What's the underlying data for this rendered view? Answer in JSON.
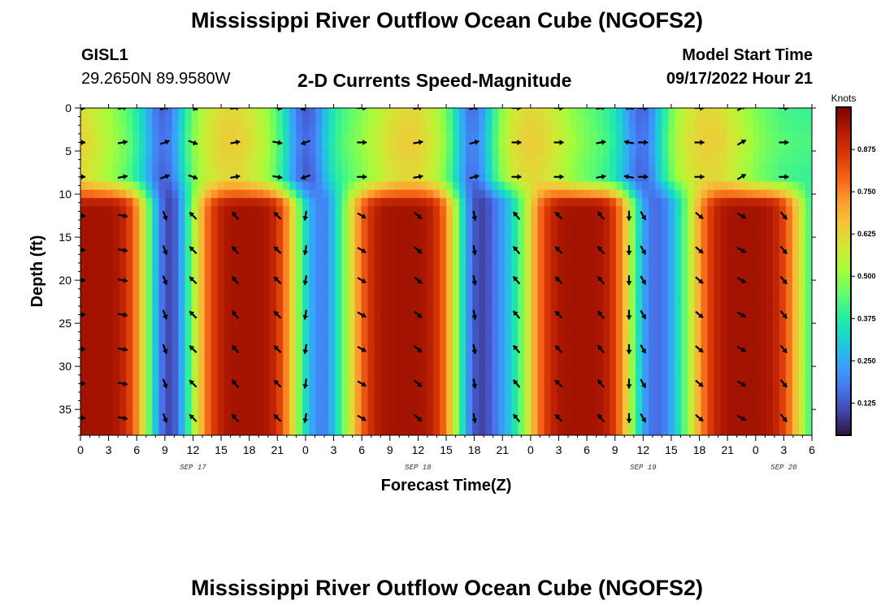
{
  "page": {
    "title_top": "Mississippi River Outflow Ocean Cube (NGOFS2)",
    "title_bottom": "Mississippi River Outflow Ocean Cube (NGOFS2)",
    "station_id": "GISL1",
    "station_coords": "29.2650N  89.9580W",
    "plot_subtitle": "2-D Currents Speed-Magnitude",
    "model_label": "Model Start Time",
    "model_time": "09/17/2022 Hour 21"
  },
  "chart_data": {
    "type": "heatmap",
    "xlabel": "Forecast Time(Z)",
    "ylabel": "Depth (ft)",
    "x_range_hours": [
      0,
      78
    ],
    "y_range_ft": [
      0,
      38
    ],
    "x_ticks": [
      {
        "hour": 0,
        "label": "0"
      },
      {
        "hour": 3,
        "label": "3"
      },
      {
        "hour": 6,
        "label": "6"
      },
      {
        "hour": 9,
        "label": "9"
      },
      {
        "hour": 12,
        "label": "12"
      },
      {
        "hour": 15,
        "label": "15"
      },
      {
        "hour": 18,
        "label": "18"
      },
      {
        "hour": 21,
        "label": "21"
      },
      {
        "hour": 24,
        "label": "0"
      },
      {
        "hour": 27,
        "label": "3"
      },
      {
        "hour": 30,
        "label": "6"
      },
      {
        "hour": 33,
        "label": "9"
      },
      {
        "hour": 36,
        "label": "12"
      },
      {
        "hour": 39,
        "label": "15"
      },
      {
        "hour": 42,
        "label": "18"
      },
      {
        "hour": 45,
        "label": "21"
      },
      {
        "hour": 48,
        "label": "0"
      },
      {
        "hour": 51,
        "label": "3"
      },
      {
        "hour": 54,
        "label": "6"
      },
      {
        "hour": 57,
        "label": "9"
      },
      {
        "hour": 60,
        "label": "12"
      },
      {
        "hour": 63,
        "label": "15"
      },
      {
        "hour": 66,
        "label": "18"
      },
      {
        "hour": 69,
        "label": "21"
      },
      {
        "hour": 72,
        "label": "0"
      },
      {
        "hour": 75,
        "label": "3"
      },
      {
        "hour": 78,
        "label": "6"
      }
    ],
    "date_labels": [
      {
        "hour": 12,
        "label": "SEP 17"
      },
      {
        "hour": 36,
        "label": "SEP 18"
      },
      {
        "hour": 60,
        "label": "SEP 19"
      },
      {
        "hour": 75,
        "label": "SEP 20"
      }
    ],
    "y_ticks": [
      0,
      5,
      10,
      15,
      20,
      25,
      30,
      35
    ],
    "colorbar": {
      "title": "Knots",
      "range": [
        0.03,
        1.0
      ],
      "ticks": [
        0.125,
        0.25,
        0.375,
        0.5,
        0.625,
        0.75,
        0.875
      ],
      "tick_labels": [
        "0.125",
        "0.250",
        "0.375",
        "0.500",
        "0.625",
        "0.750",
        "0.875"
      ],
      "colormap": [
        "#30123b",
        "#4145ab",
        "#4675ed",
        "#39a2fc",
        "#1bcfd4",
        "#24eca6",
        "#61fc6c",
        "#a4fc3b",
        "#d1e834",
        "#f3c63a",
        "#fe9b2d",
        "#f36315",
        "#d93806",
        "#b11901",
        "#7a0402"
      ]
    },
    "surface_layer": {
      "depth_ft": [
        0,
        8
      ],
      "peak_speed_knots": 0.6,
      "trough_speed_knots": 0.12
    },
    "deep_layer": {
      "depth_ft": [
        10,
        38
      ],
      "peak_speed_knots": 0.95,
      "trough_speed_knots": 0.05
    },
    "speed_peaks_hours": [
      1.5,
      18,
      34.5,
      53.5,
      71
    ],
    "speed_troughs_hours": [
      9,
      24,
      42,
      60
    ],
    "surface_peak_hours": [
      -1,
      16,
      35,
      48,
      67
    ],
    "arrow_columns_hours": [
      0,
      4.5,
      9,
      12,
      16.5,
      21,
      24,
      30,
      36,
      42,
      46.5,
      51,
      55.5,
      58.5,
      60,
      66,
      70.5,
      75
    ],
    "arrow_rows_ft": [
      0,
      4,
      8,
      12.5,
      16.5,
      20,
      24,
      28,
      32,
      36
    ],
    "arrow_bearing_surface_by_column_deg": [
      90,
      80,
      70,
      110,
      80,
      100,
      250,
      90,
      80,
      75,
      90,
      90,
      80,
      280,
      90,
      90,
      60,
      90
    ],
    "arrow_bearing_deep_by_column_deg": [
      90,
      100,
      160,
      315,
      320,
      315,
      190,
      120,
      130,
      170,
      320,
      315,
      320,
      180,
      150,
      130,
      120,
      140
    ]
  }
}
